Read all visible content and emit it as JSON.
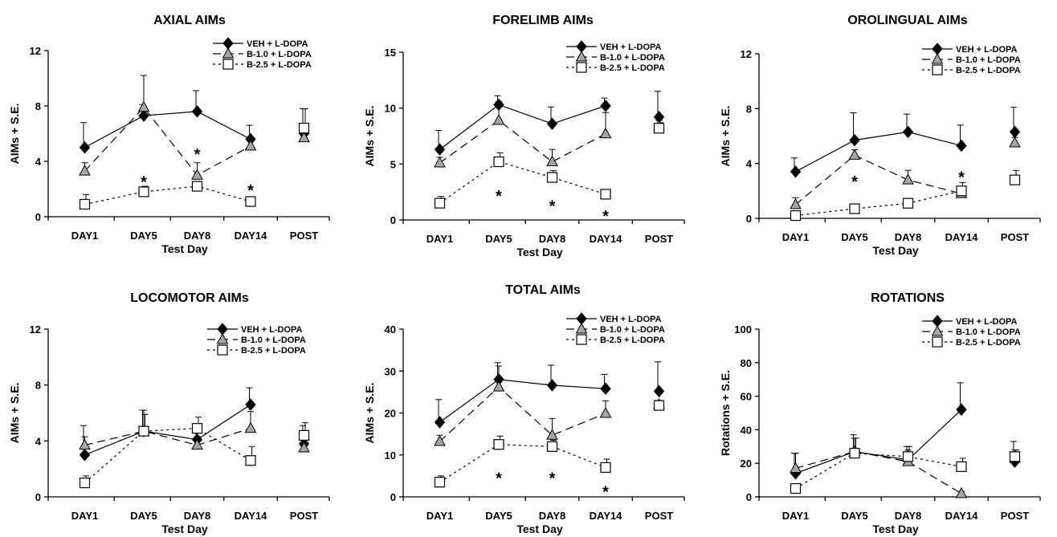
{
  "figure": {
    "colors": {
      "veh": "#000000",
      "b10": "#a6a6a6",
      "b25": "#ffffff",
      "axis": "#000000"
    }
  },
  "chart_data": [
    {
      "type": "line",
      "title": "AXIAL AIMs",
      "xlabel": "Test Day",
      "ylabel": "AIMs + S.E.",
      "categories": [
        "DAY1",
        "DAY5",
        "DAY8",
        "DAY14",
        "POST"
      ],
      "ylim": [
        0,
        12
      ],
      "yticks": [
        0,
        4,
        8,
        12
      ],
      "legend": "top-right",
      "series": [
        {
          "name": "VEH + L-DOPA",
          "marker": "diamond",
          "line": "solid",
          "values": [
            5.0,
            7.3,
            7.6,
            5.6,
            6.0
          ],
          "se": [
            1.8,
            0.8,
            1.5,
            1.0,
            1.8
          ]
        },
        {
          "name": "B-1.0 + L-DOPA",
          "marker": "triangle",
          "line": "dashed",
          "values": [
            3.3,
            7.9,
            3.0,
            5.1,
            5.7
          ],
          "se": [
            0.6,
            2.3,
            0.9,
            0.4,
            0.4
          ]
        },
        {
          "name": "B-2.5 + L-DOPA",
          "marker": "square",
          "line": "dotted",
          "values": [
            0.9,
            1.8,
            2.2,
            1.1,
            6.4
          ],
          "se": [
            0.7,
            0.4,
            0.3,
            0.2,
            1.4
          ]
        }
      ],
      "annotations": [
        {
          "text": "*",
          "x": "DAY5",
          "y": 2.8
        },
        {
          "text": "*",
          "x": "DAY8",
          "y": 4.8
        },
        {
          "text": "*",
          "x": "DAY14",
          "y": 2.2
        }
      ]
    },
    {
      "type": "line",
      "title": "FORELIMB AIMs",
      "xlabel": "Test Day",
      "ylabel": "AIMs + S.E.",
      "categories": [
        "DAY1",
        "DAY5",
        "DAY8",
        "DAY14",
        "POST"
      ],
      "ylim": [
        0,
        15
      ],
      "yticks": [
        0,
        5,
        10,
        15
      ],
      "legend": "top-right",
      "series": [
        {
          "name": "VEH + L-DOPA",
          "marker": "diamond",
          "line": "solid",
          "values": [
            6.3,
            10.3,
            8.6,
            10.2,
            9.2
          ],
          "se": [
            1.7,
            0.8,
            1.5,
            0.7,
            2.3
          ]
        },
        {
          "name": "B-1.0 + L-DOPA",
          "marker": "triangle",
          "line": "dashed",
          "values": [
            5.1,
            8.9,
            5.2,
            7.7,
            8.4
          ],
          "se": [
            0.5,
            1.7,
            1.1,
            1.9,
            0.5
          ]
        },
        {
          "name": "B-2.5 + L-DOPA",
          "marker": "square",
          "line": "dotted",
          "values": [
            1.5,
            5.2,
            3.8,
            2.3,
            8.2
          ],
          "se": [
            0.6,
            0.8,
            0.6,
            0.4,
            0.5
          ]
        }
      ],
      "annotations": [
        {
          "text": "*",
          "x": "DAY5",
          "y": 2.5
        },
        {
          "text": "*",
          "x": "DAY8",
          "y": 1.6
        },
        {
          "text": "*",
          "x": "DAY14",
          "y": 0.7
        }
      ]
    },
    {
      "type": "line",
      "title": "OROLINGUAL AIMs",
      "xlabel": "Test Day",
      "ylabel": "AIMs + S.E.",
      "categories": [
        "DAY1",
        "DAY5",
        "DAY8",
        "DAY14",
        "POST"
      ],
      "ylim": [
        0,
        12
      ],
      "yticks": [
        0,
        4,
        8,
        12
      ],
      "legend": "top-right",
      "series": [
        {
          "name": "VEH + L-DOPA",
          "marker": "diamond",
          "line": "solid",
          "values": [
            3.4,
            5.7,
            6.3,
            5.3,
            6.3
          ],
          "se": [
            1.0,
            2.0,
            1.3,
            1.5,
            1.8
          ]
        },
        {
          "name": "B-1.0 + L-DOPA",
          "marker": "triangle",
          "line": "dashed",
          "values": [
            1.0,
            4.6,
            2.8,
            1.8,
            5.5
          ],
          "se": [
            0.5,
            0.4,
            0.7,
            0.3,
            0.4
          ]
        },
        {
          "name": "B-2.5 + L-DOPA",
          "marker": "square",
          "line": "dotted",
          "values": [
            0.2,
            0.7,
            1.1,
            2.0,
            2.8
          ],
          "se": [
            0.2,
            0.2,
            0.1,
            0.6,
            0.7
          ]
        }
      ],
      "annotations": [
        {
          "text": "*",
          "x": "DAY5",
          "y": 3.0
        },
        {
          "text": "*",
          "x": "DAY14",
          "y": 3.3
        }
      ]
    },
    {
      "type": "line",
      "title": "LOCOMOTOR AIMs",
      "xlabel": "Test Day",
      "ylabel": "AIMs + S.E.",
      "categories": [
        "DAY1",
        "DAY5",
        "DAY8",
        "DAY14",
        "POST"
      ],
      "ylim": [
        0,
        12
      ],
      "yticks": [
        0,
        4,
        8,
        12
      ],
      "legend": "top-right",
      "series": [
        {
          "name": "VEH + L-DOPA",
          "marker": "diamond",
          "line": "solid",
          "values": [
            3.0,
            4.7,
            4.1,
            6.6,
            3.8
          ],
          "se": [
            2.1,
            1.5,
            0.5,
            1.2,
            1.3
          ]
        },
        {
          "name": "B-1.0 + L-DOPA",
          "marker": "triangle",
          "line": "dashed",
          "values": [
            3.7,
            4.7,
            3.7,
            4.9,
            3.5
          ],
          "se": [
            0.6,
            1.5,
            0.6,
            1.2,
            0.4
          ]
        },
        {
          "name": "B-2.5 + L-DOPA",
          "marker": "square",
          "line": "dotted",
          "values": [
            1.0,
            4.7,
            4.9,
            2.6,
            4.4
          ],
          "se": [
            0.5,
            1.2,
            0.8,
            1.0,
            0.9
          ]
        }
      ],
      "annotations": []
    },
    {
      "type": "line",
      "title": "TOTAL AIMs",
      "xlabel": "Test Day",
      "ylabel": "AIMs + S.E.",
      "categories": [
        "DAY1",
        "DAY5",
        "DAY8",
        "DAY14",
        "POST"
      ],
      "ylim": [
        0,
        40
      ],
      "yticks": [
        0,
        10,
        20,
        30,
        40
      ],
      "legend": "top-right",
      "series": [
        {
          "name": "VEH + L-DOPA",
          "marker": "diamond",
          "line": "solid",
          "values": [
            17.8,
            28.0,
            26.6,
            25.8,
            25.2
          ],
          "se": [
            5.4,
            4.0,
            4.8,
            3.4,
            7.0
          ]
        },
        {
          "name": "B-1.0 + L-DOPA",
          "marker": "triangle",
          "line": "dashed",
          "values": [
            13.2,
            26.2,
            14.7,
            19.9,
            22.0
          ],
          "se": [
            1.5,
            5.0,
            4.0,
            3.0,
            1.0
          ]
        },
        {
          "name": "B-2.5 + L-DOPA",
          "marker": "square",
          "line": "dotted",
          "values": [
            3.5,
            12.5,
            12.0,
            7.0,
            21.8
          ],
          "se": [
            1.5,
            2.0,
            1.5,
            2.0,
            1.0
          ]
        }
      ],
      "annotations": [
        {
          "text": "*",
          "x": "DAY5",
          "y": 5.5
        },
        {
          "text": "*",
          "x": "DAY8",
          "y": 5.5
        },
        {
          "text": "*",
          "x": "DAY14",
          "y": 2.2
        }
      ]
    },
    {
      "type": "line",
      "title": "ROTATIONS",
      "xlabel": "Test Day",
      "ylabel": "Rotations + S.E.",
      "categories": [
        "DAY1",
        "DAY5",
        "DAY8",
        "DAY14",
        "POST"
      ],
      "ylim": [
        0,
        100
      ],
      "yticks": [
        0,
        20,
        40,
        60,
        80,
        100
      ],
      "legend": "top-right",
      "series": [
        {
          "name": "VEH + L-DOPA",
          "marker": "diamond",
          "line": "solid",
          "values": [
            14,
            27,
            22,
            52,
            21
          ],
          "se": [
            12,
            10,
            8,
            16,
            12
          ]
        },
        {
          "name": "B-1.0 + L-DOPA",
          "marker": "triangle",
          "line": "dashed",
          "values": [
            17,
            27,
            21,
            2,
            23
          ],
          "se": [
            9,
            8,
            7,
            1,
            5
          ]
        },
        {
          "name": "B-2.5 + L-DOPA",
          "marker": "square",
          "line": "dotted",
          "values": [
            5,
            26,
            24,
            18,
            24
          ],
          "se": [
            1,
            9,
            6,
            5,
            4
          ]
        }
      ],
      "annotations": []
    }
  ]
}
